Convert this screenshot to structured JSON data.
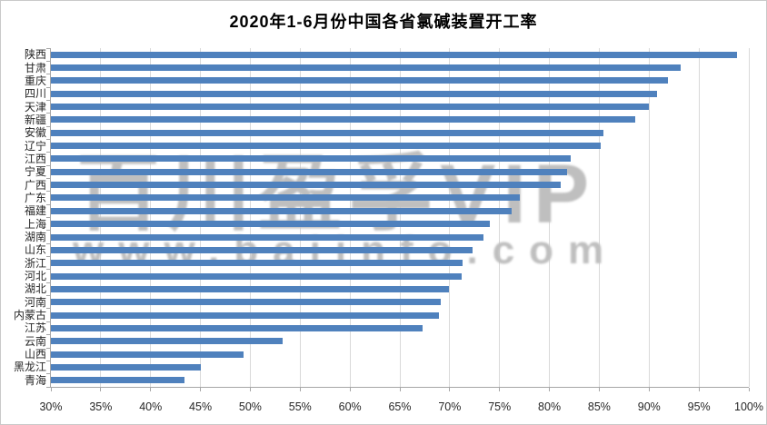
{
  "title": "2020年1-6月份中国各省氯碱装置开工率",
  "watermark": {
    "line1": "百川盈孚VIP",
    "line2": "www.baiinfo.com"
  },
  "colors": {
    "bar": "#4f81bd",
    "gridline": "#d9d9d9",
    "axis": "#a6a6a6",
    "watermark": "#bfbfbf",
    "title_text": "#000000",
    "tick_text": "#262626"
  },
  "chart_data": {
    "type": "bar",
    "orientation": "horizontal",
    "title": "2020年1-6月份中国各省氯碱装置开工率",
    "categories": [
      "陕西",
      "甘肃",
      "重庆",
      "四川",
      "天津",
      "新疆",
      "安徽",
      "辽宁",
      "江西",
      "宁夏",
      "广西",
      "广东",
      "福建",
      "上海",
      "湖南",
      "山东",
      "浙江",
      "河北",
      "湖北",
      "河南",
      "内蒙古",
      "江苏",
      "云南",
      "山西",
      "黑龙江",
      "青海"
    ],
    "values": [
      98.8,
      93.2,
      91.9,
      90.8,
      90.0,
      88.6,
      85.4,
      85.1,
      82.1,
      81.8,
      81.1,
      77.0,
      76.2,
      74.0,
      73.4,
      72.3,
      71.3,
      71.2,
      69.9,
      69.1,
      68.9,
      67.3,
      53.2,
      49.3,
      45.0,
      43.4
    ],
    "value_unit": "%",
    "xlim": [
      30,
      100
    ],
    "x_tick_interval": 5,
    "x_tick_labels": [
      "30%",
      "35%",
      "40%",
      "45%",
      "50%",
      "55%",
      "60%",
      "65%",
      "70%",
      "75%",
      "80%",
      "85%",
      "90%",
      "95%",
      "100%"
    ],
    "ylabel": "",
    "xlabel": "",
    "grid": true,
    "legend": false
  }
}
